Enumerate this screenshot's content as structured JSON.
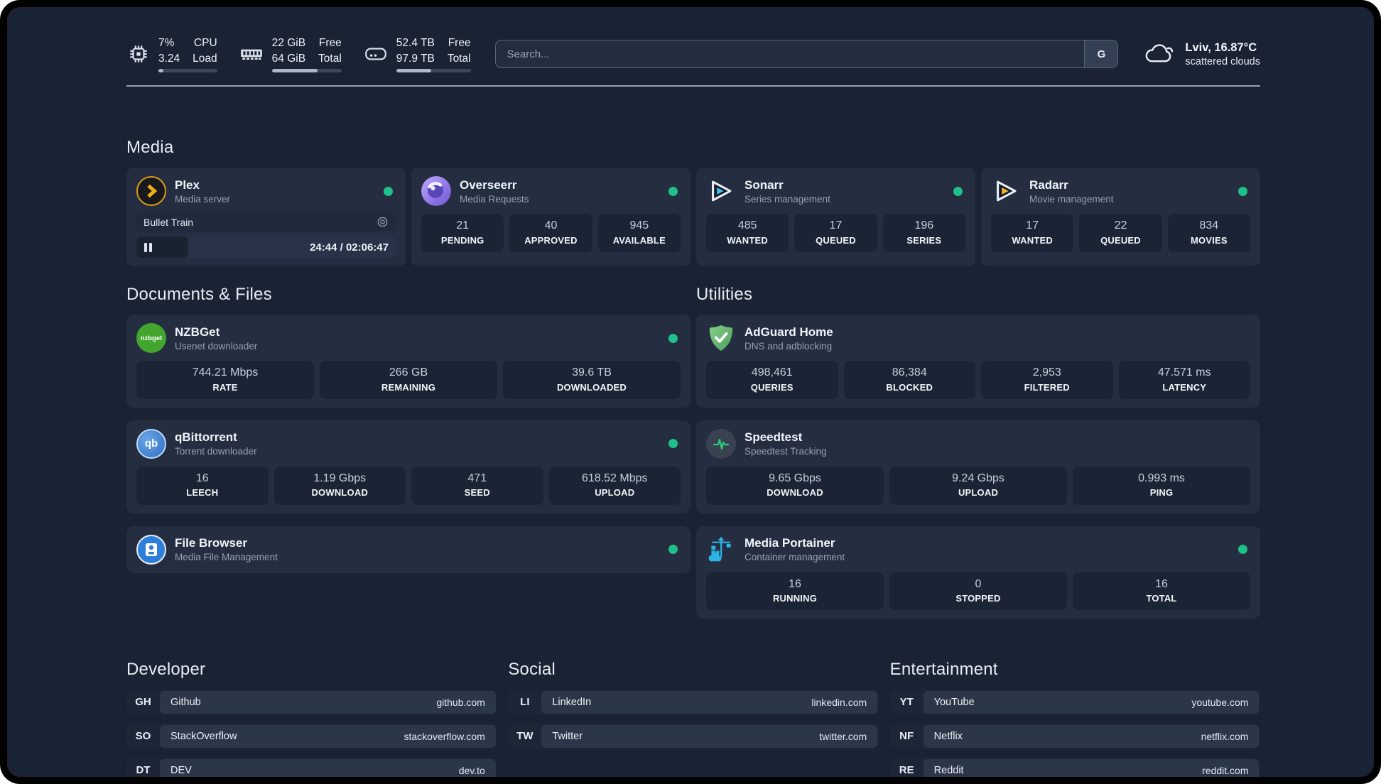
{
  "header": {
    "system_stats": [
      {
        "icon": "cpu-icon",
        "values": [
          "7%",
          "3.24"
        ],
        "labels": [
          "CPU",
          "Load"
        ],
        "progress_percent": 8
      },
      {
        "icon": "ram-icon",
        "values": [
          "22 GiB",
          "64 GiB"
        ],
        "labels": [
          "Free",
          "Total"
        ],
        "progress_percent": 66
      },
      {
        "icon": "disk-icon",
        "values": [
          "52.4 TB",
          "97.9 TB"
        ],
        "labels": [
          "Free",
          "Total"
        ],
        "progress_percent": 47
      }
    ],
    "search": {
      "placeholder": "Search...",
      "engine_button": "G"
    },
    "weather": {
      "icon": "cloud-icon",
      "location": "Lviv, 16.87°C",
      "condition": "scattered clouds"
    }
  },
  "sections": {
    "media": {
      "title": "Media",
      "apps": {
        "plex": {
          "icon": "plex-icon",
          "name": "Plex",
          "subtitle": "Media server",
          "status": "online",
          "now_playing": {
            "title": "Bullet Train",
            "time": "24:44 / 02:06:47",
            "state": "paused",
            "progress_percent": 20
          }
        },
        "overseerr": {
          "icon": "overseerr-icon",
          "name": "Overseerr",
          "subtitle": "Media Requests",
          "status": "online",
          "stats": [
            {
              "value": "21",
              "label": "PENDING"
            },
            {
              "value": "40",
              "label": "APPROVED"
            },
            {
              "value": "945",
              "label": "AVAILABLE"
            }
          ]
        },
        "sonarr": {
          "icon": "sonarr-icon",
          "name": "Sonarr",
          "subtitle": "Series management",
          "status": "online",
          "stats": [
            {
              "value": "485",
              "label": "WANTED"
            },
            {
              "value": "17",
              "label": "QUEUED"
            },
            {
              "value": "196",
              "label": "SERIES"
            }
          ]
        },
        "radarr": {
          "icon": "radarr-icon",
          "name": "Radarr",
          "subtitle": "Movie management",
          "status": "online",
          "stats": [
            {
              "value": "17",
              "label": "WANTED"
            },
            {
              "value": "22",
              "label": "QUEUED"
            },
            {
              "value": "834",
              "label": "MOVIES"
            }
          ]
        }
      }
    },
    "documents": {
      "title": "Documents & Files",
      "apps": {
        "nzbget": {
          "icon": "nzbget-icon",
          "name": "NZBGet",
          "subtitle": "Usenet downloader",
          "status": "online",
          "stats": [
            {
              "value": "744.21 Mbps",
              "label": "RATE"
            },
            {
              "value": "266 GB",
              "label": "REMAINING"
            },
            {
              "value": "39.6 TB",
              "label": "DOWNLOADED"
            }
          ]
        },
        "qbittorrent": {
          "icon": "qbittorrent-icon",
          "name": "qBittorrent",
          "subtitle": "Torrent downloader",
          "status": "online",
          "stats": [
            {
              "value": "16",
              "label": "LEECH"
            },
            {
              "value": "1.19 Gbps",
              "label": "DOWNLOAD"
            },
            {
              "value": "471",
              "label": "SEED"
            },
            {
              "value": "618.52 Mbps",
              "label": "UPLOAD"
            }
          ]
        },
        "filebrowser": {
          "icon": "filebrowser-icon",
          "name": "File Browser",
          "subtitle": "Media File Management",
          "status": "online"
        }
      }
    },
    "utilities": {
      "title": "Utilities",
      "apps": {
        "adguard": {
          "icon": "adguard-icon",
          "name": "AdGuard Home",
          "subtitle": "DNS and adblocking",
          "stats": [
            {
              "value": "498,461",
              "label": "QUERIES"
            },
            {
              "value": "86,384",
              "label": "BLOCKED"
            },
            {
              "value": "2,953",
              "label": "FILTERED"
            },
            {
              "value": "47.571 ms",
              "label": "LATENCY"
            }
          ]
        },
        "speedtest": {
          "icon": "speedtest-icon",
          "name": "Speedtest",
          "subtitle": "Speedtest Tracking",
          "stats": [
            {
              "value": "9.65 Gbps",
              "label": "DOWNLOAD"
            },
            {
              "value": "9.24 Gbps",
              "label": "UPLOAD"
            },
            {
              "value": "0.993 ms",
              "label": "PING"
            }
          ]
        },
        "portainer": {
          "icon": "portainer-icon",
          "name": "Media Portainer",
          "subtitle": "Container management",
          "status": "online",
          "stats": [
            {
              "value": "16",
              "label": "RUNNING"
            },
            {
              "value": "0",
              "label": "STOPPED"
            },
            {
              "value": "16",
              "label": "TOTAL"
            }
          ]
        }
      }
    },
    "bookmarks": [
      {
        "title": "Developer",
        "links": [
          {
            "abbr": "GH",
            "name": "Github",
            "url": "github.com"
          },
          {
            "abbr": "SO",
            "name": "StackOverflow",
            "url": "stackoverflow.com"
          },
          {
            "abbr": "DT",
            "name": "DEV",
            "url": "dev.to"
          }
        ]
      },
      {
        "title": "Social",
        "links": [
          {
            "abbr": "LI",
            "name": "LinkedIn",
            "url": "linkedin.com"
          },
          {
            "abbr": "TW",
            "name": "Twitter",
            "url": "twitter.com"
          }
        ]
      },
      {
        "title": "Entertainment",
        "links": [
          {
            "abbr": "YT",
            "name": "YouTube",
            "url": "youtube.com"
          },
          {
            "abbr": "NF",
            "name": "Netflix",
            "url": "netflix.com"
          },
          {
            "abbr": "RE",
            "name": "Reddit",
            "url": "reddit.com"
          }
        ]
      }
    ]
  },
  "colors": {
    "status_online": "#1fc08a",
    "plex_accent": "#e5a00d",
    "page_bg": "#1a2333",
    "card_bg": "#242e40"
  }
}
